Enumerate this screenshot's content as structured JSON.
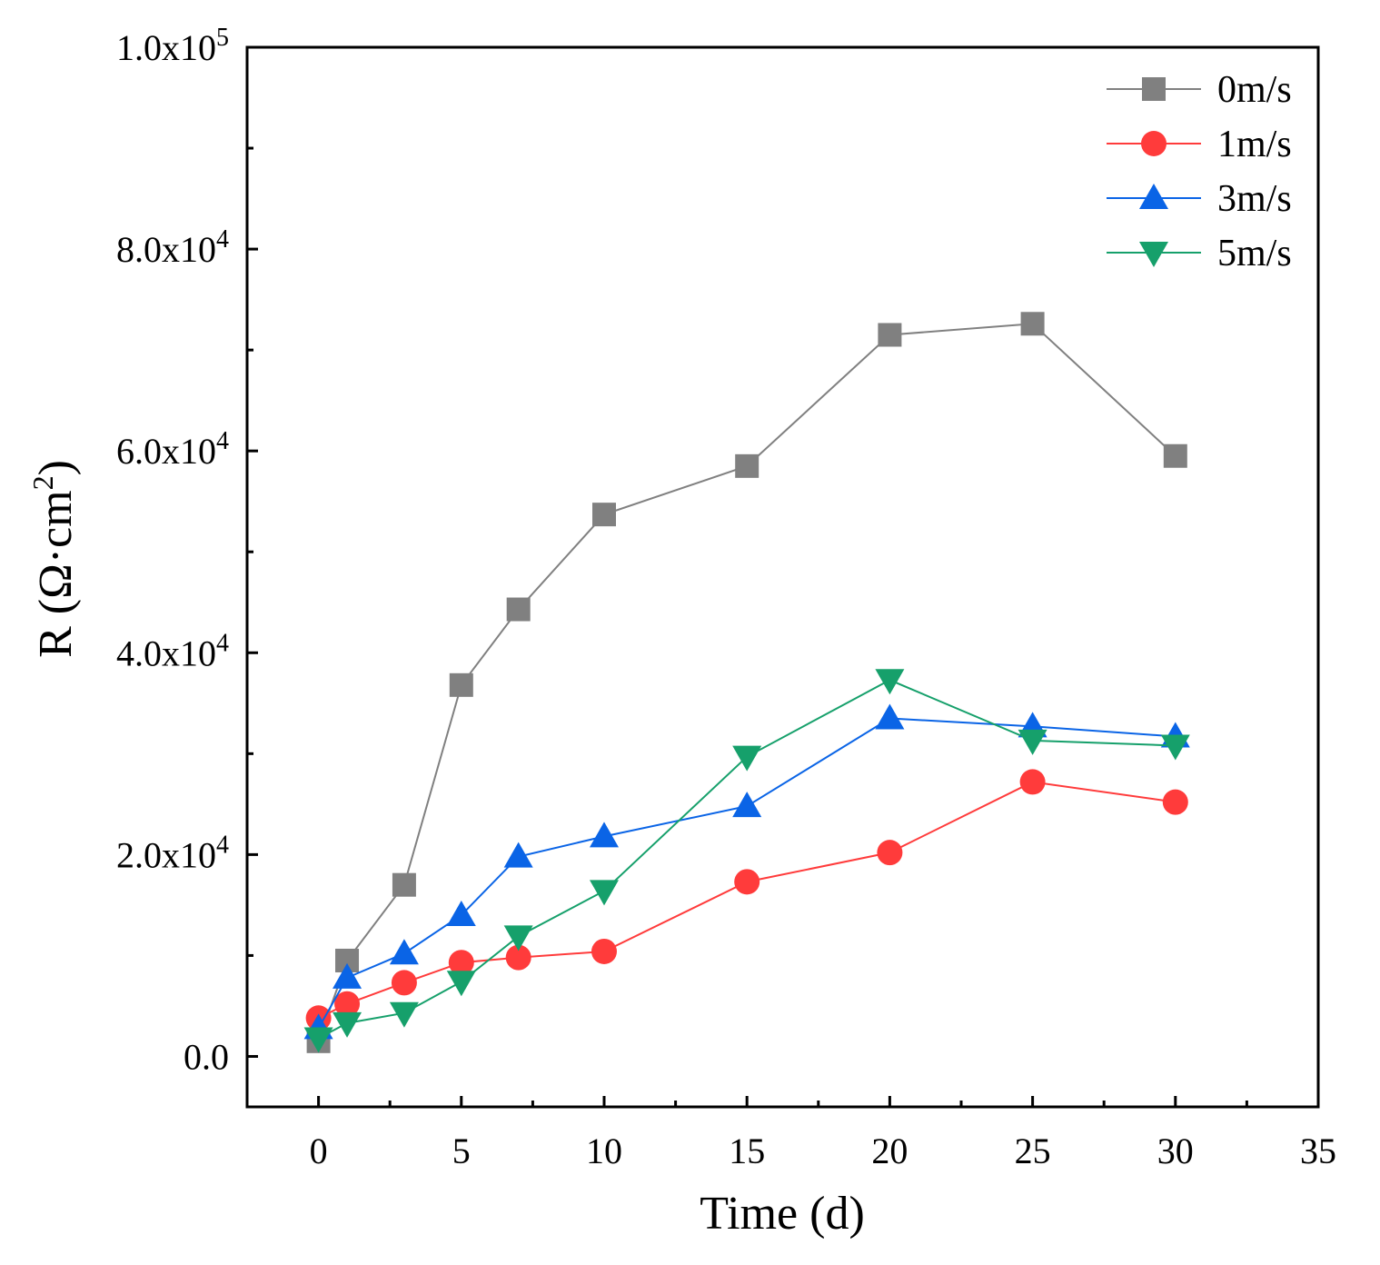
{
  "chart_data": {
    "type": "line",
    "title": "",
    "xlabel": "Time (d)",
    "ylabel_main": "R (Ω·cm",
    "ylabel_sup": "2",
    "ylabel_end": ")",
    "xlim": [
      -2.5,
      35
    ],
    "ylim": [
      -5000,
      100000
    ],
    "x_ticks": [
      0,
      5,
      10,
      15,
      20,
      25,
      30,
      35
    ],
    "y_ticks": [
      {
        "value": 0,
        "label": "0.0",
        "exp": ""
      },
      {
        "value": 20000,
        "label": "2.0x10",
        "exp": "4"
      },
      {
        "value": 40000,
        "label": "4.0x10",
        "exp": "4"
      },
      {
        "value": 60000,
        "label": "6.0x10",
        "exp": "4"
      },
      {
        "value": 80000,
        "label": "8.0x10",
        "exp": "4"
      },
      {
        "value": 100000,
        "label": "1.0x10",
        "exp": "5"
      }
    ],
    "legend_position": "top-right",
    "x": [
      0,
      1,
      3,
      5,
      7,
      10,
      15,
      20,
      25,
      30
    ],
    "series": [
      {
        "name": "0m/s",
        "marker": "square",
        "color": "#808080",
        "values": [
          1500,
          9500,
          17000,
          36800,
          44300,
          53700,
          58500,
          71500,
          72600,
          59500
        ]
      },
      {
        "name": "1m/s",
        "marker": "circle",
        "color": "#ff3b3b",
        "values": [
          3800,
          5200,
          7300,
          9300,
          9800,
          10400,
          17300,
          20200,
          27200,
          25200
        ]
      },
      {
        "name": "3m/s",
        "marker": "triangle-up",
        "color": "#0a64e6",
        "values": [
          2800,
          7800,
          10200,
          14000,
          19800,
          21800,
          24800,
          33500,
          32700,
          31700
        ]
      },
      {
        "name": "5m/s",
        "marker": "triangle-down",
        "color": "#16a06b",
        "values": [
          1800,
          3300,
          4300,
          7400,
          11900,
          16400,
          29700,
          37300,
          31300,
          30800
        ]
      }
    ]
  }
}
